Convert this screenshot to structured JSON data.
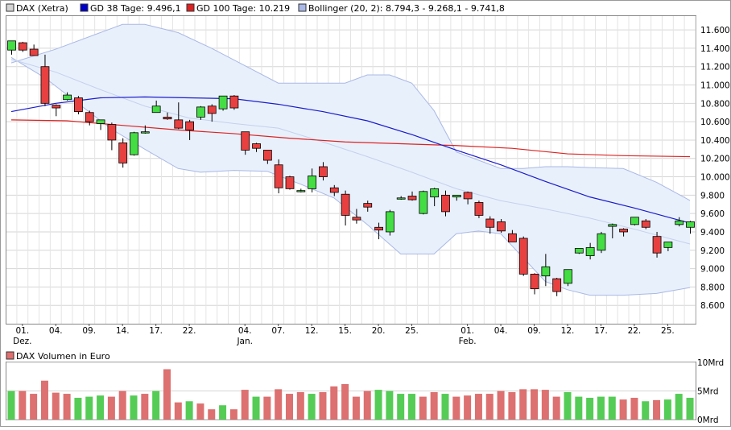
{
  "legend": [
    {
      "swatch": "#d4d4d4",
      "label": "DAX (Xetra)"
    },
    {
      "swatch": "#0000cc",
      "label": "GD 38 Tage: 9.496,1"
    },
    {
      "swatch": "#dd2222",
      "label": "GD 100 Tage: 10.219"
    },
    {
      "swatch": "#a9b8e6",
      "label": "Bollinger (20, 2): 8.794,3 - 9.268,1 - 9.741,8"
    }
  ],
  "volume_legend": {
    "swatch": "#e07070",
    "label": "DAX Volumen in Euro"
  },
  "colors": {
    "up": "#44dd44",
    "down": "#e84040",
    "gd38": "#1a1acc",
    "gd100": "#dd2222",
    "band_fill": "#e8f0fb",
    "band_edge": "#a9b8e6",
    "vol_up": "#55cc55",
    "vol_down": "#dd7070"
  },
  "chart_data": [
    {
      "type": "candlestick",
      "title": "DAX (Xetra)",
      "ylim": [
        8400,
        11750
      ],
      "y_ticks": [
        "11.600",
        "11.400",
        "11.200",
        "11.000",
        "10.800",
        "10.600",
        "10.400",
        "10.200",
        "10.000",
        "9.800",
        "9.600",
        "9.400",
        "9.200",
        "9.000",
        "8.800",
        "8.600"
      ],
      "x_tick_labels": [
        {
          "index": 1,
          "label": "01.",
          "sub": "Dez."
        },
        {
          "index": 4,
          "label": "04."
        },
        {
          "index": 7,
          "label": "09."
        },
        {
          "index": 10,
          "label": "14."
        },
        {
          "index": 13,
          "label": "17."
        },
        {
          "index": 16,
          "label": "22."
        },
        {
          "index": 21,
          "label": "04.",
          "sub": "Jan."
        },
        {
          "index": 24,
          "label": "07."
        },
        {
          "index": 27,
          "label": "12."
        },
        {
          "index": 30,
          "label": "15."
        },
        {
          "index": 33,
          "label": "20."
        },
        {
          "index": 36,
          "label": "25."
        },
        {
          "index": 41,
          "label": "01.",
          "sub": "Feb."
        },
        {
          "index": 44,
          "label": "04."
        },
        {
          "index": 47,
          "label": "09."
        },
        {
          "index": 50,
          "label": "12."
        },
        {
          "index": 53,
          "label": "17."
        },
        {
          "index": 56,
          "label": "22."
        },
        {
          "index": 59,
          "label": "25."
        }
      ],
      "candles": [
        {
          "o": 11380,
          "h": 11470,
          "l": 11330,
          "c": 11480
        },
        {
          "o": 11460,
          "h": 11470,
          "l": 11360,
          "c": 11380
        },
        {
          "o": 11390,
          "h": 11440,
          "l": 11320,
          "c": 11320
        },
        {
          "o": 11200,
          "h": 11330,
          "l": 10770,
          "c": 10800
        },
        {
          "o": 10780,
          "h": 10790,
          "l": 10660,
          "c": 10750
        },
        {
          "o": 10840,
          "h": 10920,
          "l": 10830,
          "c": 10890
        },
        {
          "o": 10860,
          "h": 10880,
          "l": 10680,
          "c": 10710
        },
        {
          "o": 10700,
          "h": 10720,
          "l": 10560,
          "c": 10600
        },
        {
          "o": 10580,
          "h": 10620,
          "l": 10510,
          "c": 10620
        },
        {
          "o": 10570,
          "h": 10590,
          "l": 10290,
          "c": 10400
        },
        {
          "o": 10370,
          "h": 10420,
          "l": 10100,
          "c": 10150
        },
        {
          "o": 10240,
          "h": 10490,
          "l": 10230,
          "c": 10480
        },
        {
          "o": 10490,
          "h": 10560,
          "l": 10470,
          "c": 10490
        },
        {
          "o": 10700,
          "h": 10830,
          "l": 10700,
          "c": 10770
        },
        {
          "o": 10650,
          "h": 10700,
          "l": 10620,
          "c": 10630
        },
        {
          "o": 10620,
          "h": 10810,
          "l": 10520,
          "c": 10530
        },
        {
          "o": 10600,
          "h": 10620,
          "l": 10400,
          "c": 10510
        },
        {
          "o": 10650,
          "h": 10770,
          "l": 10620,
          "c": 10760
        },
        {
          "o": 10770,
          "h": 10790,
          "l": 10600,
          "c": 10690
        },
        {
          "o": 10740,
          "h": 10880,
          "l": 10720,
          "c": 10880
        },
        {
          "o": 10880,
          "h": 10890,
          "l": 10730,
          "c": 10750
        },
        {
          "o": 10490,
          "h": 10490,
          "l": 10240,
          "c": 10290
        },
        {
          "o": 10360,
          "h": 10370,
          "l": 10270,
          "c": 10310
        },
        {
          "o": 10290,
          "h": 10290,
          "l": 10140,
          "c": 10180
        },
        {
          "o": 10130,
          "h": 10190,
          "l": 9820,
          "c": 9880
        },
        {
          "o": 10000,
          "h": 10010,
          "l": 9860,
          "c": 9870
        },
        {
          "o": 9850,
          "h": 9870,
          "l": 9830,
          "c": 9850
        },
        {
          "o": 9870,
          "h": 10090,
          "l": 9830,
          "c": 10010
        },
        {
          "o": 10110,
          "h": 10160,
          "l": 9960,
          "c": 10000
        },
        {
          "o": 9880,
          "h": 9910,
          "l": 9790,
          "c": 9830
        },
        {
          "o": 9810,
          "h": 9850,
          "l": 9470,
          "c": 9580
        },
        {
          "o": 9560,
          "h": 9650,
          "l": 9490,
          "c": 9530
        },
        {
          "o": 9710,
          "h": 9740,
          "l": 9620,
          "c": 9670
        },
        {
          "o": 9450,
          "h": 9500,
          "l": 9320,
          "c": 9420
        },
        {
          "o": 9400,
          "h": 9640,
          "l": 9360,
          "c": 9620
        },
        {
          "o": 9770,
          "h": 9790,
          "l": 9750,
          "c": 9770
        },
        {
          "o": 9790,
          "h": 9840,
          "l": 9740,
          "c": 9750
        },
        {
          "o": 9600,
          "h": 9850,
          "l": 9590,
          "c": 9840
        },
        {
          "o": 9780,
          "h": 9880,
          "l": 9680,
          "c": 9870
        },
        {
          "o": 9800,
          "h": 9850,
          "l": 9570,
          "c": 9620
        },
        {
          "o": 9780,
          "h": 9790,
          "l": 9740,
          "c": 9800
        },
        {
          "o": 9830,
          "h": 9840,
          "l": 9700,
          "c": 9760
        },
        {
          "o": 9720,
          "h": 9740,
          "l": 9550,
          "c": 9580
        },
        {
          "o": 9540,
          "h": 9570,
          "l": 9380,
          "c": 9450
        },
        {
          "o": 9510,
          "h": 9540,
          "l": 9390,
          "c": 9410
        },
        {
          "o": 9380,
          "h": 9420,
          "l": 9310,
          "c": 9290
        },
        {
          "o": 9330,
          "h": 9350,
          "l": 8920,
          "c": 8940
        },
        {
          "o": 8940,
          "h": 8950,
          "l": 8720,
          "c": 8780
        },
        {
          "o": 8920,
          "h": 9160,
          "l": 8810,
          "c": 9020
        },
        {
          "o": 8890,
          "h": 8900,
          "l": 8700,
          "c": 8750
        },
        {
          "o": 8840,
          "h": 8990,
          "l": 8810,
          "c": 8990
        },
        {
          "o": 9170,
          "h": 9220,
          "l": 9160,
          "c": 9220
        },
        {
          "o": 9140,
          "h": 9280,
          "l": 9100,
          "c": 9230
        },
        {
          "o": 9200,
          "h": 9400,
          "l": 9170,
          "c": 9380
        },
        {
          "o": 9460,
          "h": 9490,
          "l": 9330,
          "c": 9480
        },
        {
          "o": 9430,
          "h": 9440,
          "l": 9350,
          "c": 9400
        },
        {
          "o": 9480,
          "h": 9560,
          "l": 9470,
          "c": 9560
        },
        {
          "o": 9520,
          "h": 9540,
          "l": 9430,
          "c": 9450
        },
        {
          "o": 9350,
          "h": 9400,
          "l": 9120,
          "c": 9170
        },
        {
          "o": 9230,
          "h": 9280,
          "l": 9190,
          "c": 9290
        },
        {
          "o": 9480,
          "h": 9560,
          "l": 9460,
          "c": 9520
        },
        {
          "o": 9450,
          "h": 9520,
          "l": 9380,
          "c": 9510
        }
      ],
      "gd38": [
        {
          "i": 0,
          "v": 10710
        },
        {
          "i": 4,
          "v": 10800
        },
        {
          "i": 8,
          "v": 10860
        },
        {
          "i": 12,
          "v": 10870
        },
        {
          "i": 16,
          "v": 10860
        },
        {
          "i": 20,
          "v": 10850
        },
        {
          "i": 24,
          "v": 10790
        },
        {
          "i": 28,
          "v": 10710
        },
        {
          "i": 32,
          "v": 10610
        },
        {
          "i": 36,
          "v": 10460
        },
        {
          "i": 40,
          "v": 10290
        },
        {
          "i": 44,
          "v": 10130
        },
        {
          "i": 48,
          "v": 9950
        },
        {
          "i": 52,
          "v": 9780
        },
        {
          "i": 56,
          "v": 9660
        },
        {
          "i": 61,
          "v": 9496
        }
      ],
      "gd100": [
        {
          "i": 0,
          "v": 10620
        },
        {
          "i": 5,
          "v": 10610
        },
        {
          "i": 10,
          "v": 10560
        },
        {
          "i": 15,
          "v": 10510
        },
        {
          "i": 20,
          "v": 10470
        },
        {
          "i": 25,
          "v": 10420
        },
        {
          "i": 30,
          "v": 10380
        },
        {
          "i": 35,
          "v": 10360
        },
        {
          "i": 40,
          "v": 10340
        },
        {
          "i": 45,
          "v": 10310
        },
        {
          "i": 50,
          "v": 10250
        },
        {
          "i": 55,
          "v": 10230
        },
        {
          "i": 61,
          "v": 10219
        }
      ],
      "bollinger_upper": [
        {
          "i": 0,
          "v": 11240
        },
        {
          "i": 4,
          "v": 11390
        },
        {
          "i": 8,
          "v": 11570
        },
        {
          "i": 10,
          "v": 11660
        },
        {
          "i": 12,
          "v": 11660
        },
        {
          "i": 15,
          "v": 11570
        },
        {
          "i": 18,
          "v": 11400
        },
        {
          "i": 21,
          "v": 11210
        },
        {
          "i": 24,
          "v": 11020
        },
        {
          "i": 27,
          "v": 11020
        },
        {
          "i": 30,
          "v": 11020
        },
        {
          "i": 32,
          "v": 11110
        },
        {
          "i": 34,
          "v": 11110
        },
        {
          "i": 36,
          "v": 11020
        },
        {
          "i": 38,
          "v": 10720
        },
        {
          "i": 40,
          "v": 10270
        },
        {
          "i": 42,
          "v": 10180
        },
        {
          "i": 44,
          "v": 10090
        },
        {
          "i": 46,
          "v": 10090
        },
        {
          "i": 48,
          "v": 10110
        },
        {
          "i": 50,
          "v": 10110
        },
        {
          "i": 52,
          "v": 10100
        },
        {
          "i": 55,
          "v": 10090
        },
        {
          "i": 58,
          "v": 9940
        },
        {
          "i": 61,
          "v": 9742
        }
      ],
      "bollinger_middle": [
        {
          "i": 0,
          "v": 11280
        },
        {
          "i": 4,
          "v": 11140
        },
        {
          "i": 8,
          "v": 10950
        },
        {
          "i": 12,
          "v": 10770
        },
        {
          "i": 16,
          "v": 10640
        },
        {
          "i": 20,
          "v": 10580
        },
        {
          "i": 24,
          "v": 10530
        },
        {
          "i": 28,
          "v": 10380
        },
        {
          "i": 32,
          "v": 10220
        },
        {
          "i": 36,
          "v": 10050
        },
        {
          "i": 40,
          "v": 9870
        },
        {
          "i": 44,
          "v": 9740
        },
        {
          "i": 48,
          "v": 9650
        },
        {
          "i": 52,
          "v": 9550
        },
        {
          "i": 56,
          "v": 9430
        },
        {
          "i": 61,
          "v": 9268
        }
      ],
      "bollinger_lower": [
        {
          "i": 0,
          "v": 11300
        },
        {
          "i": 3,
          "v": 11080
        },
        {
          "i": 6,
          "v": 10800
        },
        {
          "i": 9,
          "v": 10520
        },
        {
          "i": 12,
          "v": 10300
        },
        {
          "i": 15,
          "v": 10090
        },
        {
          "i": 17,
          "v": 10050
        },
        {
          "i": 20,
          "v": 10070
        },
        {
          "i": 23,
          "v": 10060
        },
        {
          "i": 26,
          "v": 9920
        },
        {
          "i": 29,
          "v": 9770
        },
        {
          "i": 32,
          "v": 9480
        },
        {
          "i": 35,
          "v": 9160
        },
        {
          "i": 38,
          "v": 9160
        },
        {
          "i": 40,
          "v": 9380
        },
        {
          "i": 42,
          "v": 9410
        },
        {
          "i": 44,
          "v": 9380
        },
        {
          "i": 46,
          "v": 9120
        },
        {
          "i": 48,
          "v": 8860
        },
        {
          "i": 50,
          "v": 8770
        },
        {
          "i": 52,
          "v": 8710
        },
        {
          "i": 55,
          "v": 8710
        },
        {
          "i": 58,
          "v": 8730
        },
        {
          "i": 61,
          "v": 8794
        }
      ]
    },
    {
      "type": "bar",
      "title": "DAX Volumen in Euro",
      "ylim": [
        0,
        10
      ],
      "y_ticks": [
        "10Mrd",
        "5Mrd",
        "0Mrd"
      ],
      "bars": [
        {
          "v": 5.0,
          "up": true
        },
        {
          "v": 5.0,
          "up": false
        },
        {
          "v": 4.5,
          "up": false
        },
        {
          "v": 6.8,
          "up": false
        },
        {
          "v": 4.7,
          "up": false
        },
        {
          "v": 4.5,
          "up": false
        },
        {
          "v": 3.8,
          "up": true
        },
        {
          "v": 4.0,
          "up": true
        },
        {
          "v": 4.2,
          "up": true
        },
        {
          "v": 4.0,
          "up": false
        },
        {
          "v": 5.0,
          "up": false
        },
        {
          "v": 4.2,
          "up": true
        },
        {
          "v": 4.5,
          "up": false
        },
        {
          "v": 5.0,
          "up": true
        },
        {
          "v": 8.8,
          "up": false
        },
        {
          "v": 3.0,
          "up": false
        },
        {
          "v": 3.2,
          "up": true
        },
        {
          "v": 2.8,
          "up": false
        },
        {
          "v": 1.8,
          "up": false
        },
        {
          "v": 2.5,
          "up": true
        },
        {
          "v": 1.8,
          "up": false
        },
        {
          "v": 5.2,
          "up": false
        },
        {
          "v": 4.0,
          "up": true
        },
        {
          "v": 4.0,
          "up": false
        },
        {
          "v": 5.3,
          "up": false
        },
        {
          "v": 4.5,
          "up": false
        },
        {
          "v": 4.8,
          "up": false
        },
        {
          "v": 4.5,
          "up": true
        },
        {
          "v": 4.8,
          "up": false
        },
        {
          "v": 5.8,
          "up": false
        },
        {
          "v": 6.2,
          "up": false
        },
        {
          "v": 4.0,
          "up": false
        },
        {
          "v": 5.0,
          "up": false
        },
        {
          "v": 5.2,
          "up": true
        },
        {
          "v": 5.0,
          "up": true
        },
        {
          "v": 4.5,
          "up": true
        },
        {
          "v": 4.5,
          "up": true
        },
        {
          "v": 4.0,
          "up": false
        },
        {
          "v": 4.8,
          "up": false
        },
        {
          "v": 4.5,
          "up": true
        },
        {
          "v": 4.0,
          "up": false
        },
        {
          "v": 4.2,
          "up": false
        },
        {
          "v": 4.5,
          "up": false
        },
        {
          "v": 4.5,
          "up": false
        },
        {
          "v": 5.0,
          "up": false
        },
        {
          "v": 4.8,
          "up": false
        },
        {
          "v": 5.3,
          "up": false
        },
        {
          "v": 5.3,
          "up": false
        },
        {
          "v": 5.2,
          "up": false
        },
        {
          "v": 4.0,
          "up": false
        },
        {
          "v": 4.8,
          "up": true
        },
        {
          "v": 4.0,
          "up": true
        },
        {
          "v": 3.8,
          "up": true
        },
        {
          "v": 4.0,
          "up": true
        },
        {
          "v": 4.0,
          "up": true
        },
        {
          "v": 3.5,
          "up": false
        },
        {
          "v": 3.8,
          "up": false
        },
        {
          "v": 3.2,
          "up": true
        },
        {
          "v": 3.4,
          "up": false
        },
        {
          "v": 3.5,
          "up": true
        },
        {
          "v": 4.5,
          "up": true
        },
        {
          "v": 3.8,
          "up": true
        }
      ]
    }
  ]
}
